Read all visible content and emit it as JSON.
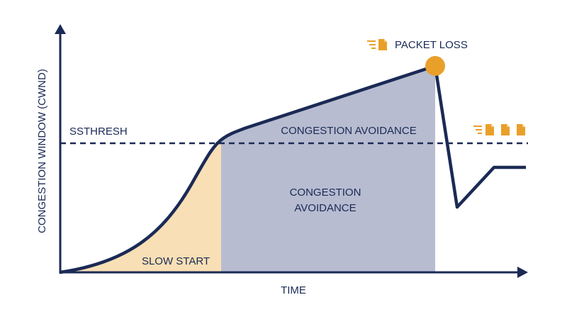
{
  "axes": {
    "y_label": "CONGESTION WINDOW (CWND)",
    "x_label": "TIME"
  },
  "threshold": {
    "label": "SSTHRESH"
  },
  "event": {
    "label": "PACKET LOSS"
  },
  "regions": {
    "slow_start": "SLOW START",
    "avoidance_line_label": "CONGESTION AVOIDANCE",
    "avoidance_area_lines": [
      "CONGESTION",
      "AVOIDANCE"
    ]
  }
}
